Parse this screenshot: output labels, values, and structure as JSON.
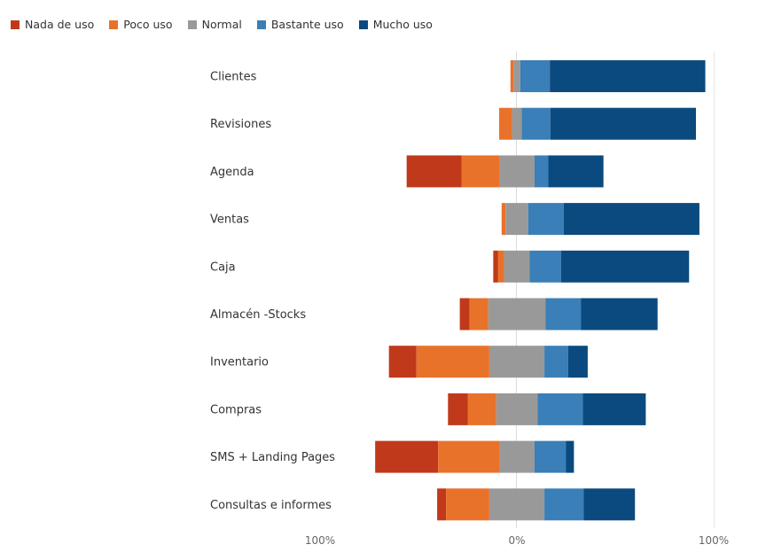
{
  "chart_data": {
    "type": "bar",
    "orientation": "horizontal",
    "stacked": "diverging",
    "categories": [
      "Clientes",
      "Revisiones",
      "Agenda",
      "Ventas",
      "Caja",
      "Almacén -Stocks",
      "Inventario",
      "Compras",
      "SMS + Landing Pages",
      "Consultas e informes"
    ],
    "series": [
      {
        "name": "Nada de uso",
        "color": "#c0391b",
        "values": [
          0.0,
          0.0,
          28.0,
          0.0,
          2.5,
          5.0,
          14.0,
          10.0,
          32.0,
          4.5
        ]
      },
      {
        "name": "Poco uso",
        "color": "#e8722a",
        "values": [
          1.5,
          6.5,
          19.0,
          2.0,
          3.0,
          9.5,
          37.0,
          14.5,
          31.0,
          22.0
        ]
      },
      {
        "name": "Normal",
        "color": "#999999",
        "values": [
          3.5,
          5.0,
          18.0,
          11.5,
          13.0,
          29.0,
          28.0,
          21.0,
          18.0,
          28.0
        ]
      },
      {
        "name": "Bastante uso",
        "color": "#3a7fb7",
        "values": [
          15.0,
          14.5,
          7.0,
          18.0,
          16.0,
          18.0,
          12.0,
          23.0,
          16.0,
          20.0
        ]
      },
      {
        "name": "Mucho uso",
        "color": "#0b4a7e",
        "values": [
          79.0,
          74.0,
          28.0,
          69.0,
          65.0,
          39.0,
          10.0,
          32.0,
          4.0,
          26.0
        ]
      }
    ],
    "neutral_series": "Normal",
    "xlim": [
      -100,
      100
    ],
    "xticks": [
      "100%",
      "0%",
      "100%"
    ],
    "legend_position": "top-left",
    "grid": false,
    "title": "",
    "xlabel": "",
    "ylabel": ""
  }
}
